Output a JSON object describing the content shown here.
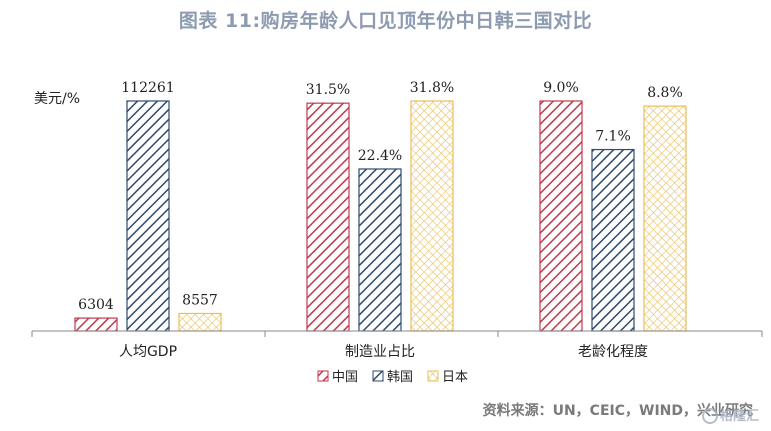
{
  "title": "图表 11:购房年龄人口见顶年份中日韩三国对比",
  "source": "资料来源：UN，CEIC，WIND，兴业研究",
  "watermark": "格隆汇",
  "colors": {
    "china": "#c0384b",
    "korea": "#2e4a6d",
    "japan": "#e8bf5a",
    "title": "#8d9bb0",
    "axis": "#888888"
  },
  "chart_data": {
    "type": "bar",
    "unit_label": "美元/%",
    "categories": [
      "人均GDP",
      "制造业占比",
      "老龄化程度"
    ],
    "series": [
      {
        "name": "中国",
        "labels": [
          "6304",
          "31.5%",
          "9.0%"
        ],
        "values": [
          6304,
          31.5,
          9.0
        ]
      },
      {
        "name": "韩国",
        "labels": [
          "112261",
          "22.4%",
          "7.1%"
        ],
        "values": [
          112261,
          22.4,
          7.1
        ]
      },
      {
        "name": "日本",
        "labels": [
          "8557",
          "31.8%",
          "8.8%"
        ],
        "values": [
          8557,
          31.8,
          8.8
        ]
      }
    ],
    "legend_position": "bottom",
    "grid": false
  }
}
